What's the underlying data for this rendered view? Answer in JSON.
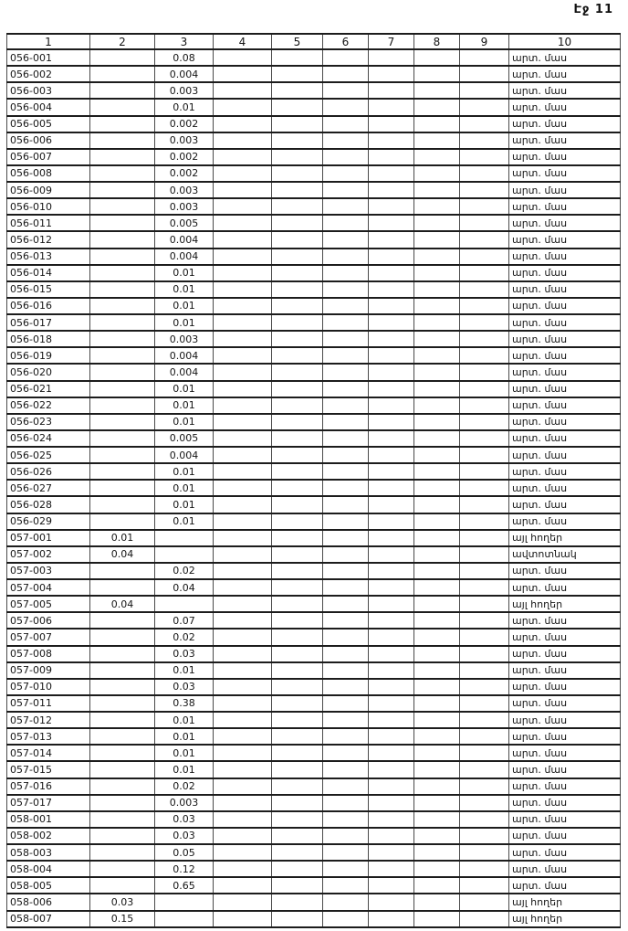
{
  "page": {
    "label": "Էջ 11"
  },
  "table": {
    "column_headers": [
      "1",
      "2",
      "3",
      "4",
      "5",
      "6",
      "7",
      "8",
      "9",
      "10"
    ],
    "row_field_columns": [
      "1",
      "2",
      "3",
      "10"
    ],
    "land_type_labels": {
      "arable": "արտ. մաս",
      "other_lands": "այլ հողեր",
      "garage": "ավտոտնակ"
    },
    "rows": [
      [
        "056-001",
        "",
        "0.08",
        "արտ. մաս"
      ],
      [
        "056-002",
        "",
        "0.004",
        "արտ. մաս"
      ],
      [
        "056-003",
        "",
        "0.003",
        "արտ. մաս"
      ],
      [
        "056-004",
        "",
        "0.01",
        "արտ. մաս"
      ],
      [
        "056-005",
        "",
        "0.002",
        "արտ. մաս"
      ],
      [
        "056-006",
        "",
        "0.003",
        "արտ. մաս"
      ],
      [
        "056-007",
        "",
        "0.002",
        "արտ. մաս"
      ],
      [
        "056-008",
        "",
        "0.002",
        "արտ. մաս"
      ],
      [
        "056-009",
        "",
        "0.003",
        "արտ. մաս"
      ],
      [
        "056-010",
        "",
        "0.003",
        "արտ. մաս"
      ],
      [
        "056-011",
        "",
        "0.005",
        "արտ. մաս"
      ],
      [
        "056-012",
        "",
        "0.004",
        "արտ. մաս"
      ],
      [
        "056-013",
        "",
        "0.004",
        "արտ. մաս"
      ],
      [
        "056-014",
        "",
        "0.01",
        "արտ. մաս"
      ],
      [
        "056-015",
        "",
        "0.01",
        "արտ. մաս"
      ],
      [
        "056-016",
        "",
        "0.01",
        "արտ. մաս"
      ],
      [
        "056-017",
        "",
        "0.01",
        "արտ. մաս"
      ],
      [
        "056-018",
        "",
        "0.003",
        "արտ. մաս"
      ],
      [
        "056-019",
        "",
        "0.004",
        "արտ. մաս"
      ],
      [
        "056-020",
        "",
        "0.004",
        "արտ. մաս"
      ],
      [
        "056-021",
        "",
        "0.01",
        "արտ. մաս"
      ],
      [
        "056-022",
        "",
        "0.01",
        "արտ. մաս"
      ],
      [
        "056-023",
        "",
        "0.01",
        "արտ. մաս"
      ],
      [
        "056-024",
        "",
        "0.005",
        "արտ. մաս"
      ],
      [
        "056-025",
        "",
        "0.004",
        "արտ. մաս"
      ],
      [
        "056-026",
        "",
        "0.01",
        "արտ. մաս"
      ],
      [
        "056-027",
        "",
        "0.01",
        "արտ. մաս"
      ],
      [
        "056-028",
        "",
        "0.01",
        "արտ. մաս"
      ],
      [
        "056-029",
        "",
        "0.01",
        "արտ. մաս"
      ],
      [
        "057-001",
        "0.01",
        "",
        "այլ հողեր"
      ],
      [
        "057-002",
        "0.04",
        "",
        "ավտոտնակ"
      ],
      [
        "057-003",
        "",
        "0.02",
        "արտ. մաս"
      ],
      [
        "057-004",
        "",
        "0.04",
        "արտ. մաս"
      ],
      [
        "057-005",
        "0.04",
        "",
        "այլ հողեր"
      ],
      [
        "057-006",
        "",
        "0.07",
        "արտ. մաս"
      ],
      [
        "057-007",
        "",
        "0.02",
        "արտ. մաս"
      ],
      [
        "057-008",
        "",
        "0.03",
        "արտ. մաս"
      ],
      [
        "057-009",
        "",
        "0.01",
        "արտ. մաս"
      ],
      [
        "057-010",
        "",
        "0.03",
        "արտ. մաս"
      ],
      [
        "057-011",
        "",
        "0.38",
        "արտ. մաս"
      ],
      [
        "057-012",
        "",
        "0.01",
        "արտ. մաս"
      ],
      [
        "057-013",
        "",
        "0.01",
        "արտ. մաս"
      ],
      [
        "057-014",
        "",
        "0.01",
        "արտ. մաս"
      ],
      [
        "057-015",
        "",
        "0.01",
        "արտ. մաս"
      ],
      [
        "057-016",
        "",
        "0.02",
        "արտ. մաս"
      ],
      [
        "057-017",
        "",
        "0.003",
        "արտ. մաս"
      ],
      [
        "058-001",
        "",
        "0.03",
        "արտ. մաս"
      ],
      [
        "058-002",
        "",
        "0.03",
        "արտ. մաս"
      ],
      [
        "058-003",
        "",
        "0.05",
        "արտ. մաս"
      ],
      [
        "058-004",
        "",
        "0.12",
        "արտ. մաս"
      ],
      [
        "058-005",
        "",
        "0.65",
        "արտ. մաս"
      ],
      [
        "058-006",
        "0.03",
        "",
        "այլ հողեր"
      ],
      [
        "058-007",
        "0.15",
        "",
        "այլ հողեր"
      ]
    ]
  }
}
